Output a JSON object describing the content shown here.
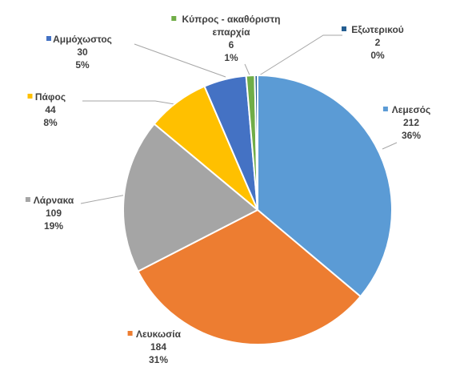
{
  "chart_data": {
    "type": "pie",
    "title": "",
    "start_angle_deg": 0,
    "direction": "clockwise",
    "slices": [
      {
        "name": "Λεμεσός",
        "label_lines": [
          "Λεμεσός"
        ],
        "value": 212,
        "value_text": "212",
        "percent_text": "36%",
        "color": "#5B9BD5"
      },
      {
        "name": "Λευκωσία",
        "label_lines": [
          "Λευκωσία"
        ],
        "value": 184,
        "value_text": "184",
        "percent_text": "31%",
        "color": "#ED7D31"
      },
      {
        "name": "Λάρνακα",
        "label_lines": [
          "Λάρνακα"
        ],
        "value": 109,
        "value_text": "109",
        "percent_text": "19%",
        "color": "#A5A5A5"
      },
      {
        "name": "Πάφος",
        "label_lines": [
          "Πάφος"
        ],
        "value": 44,
        "value_text": "44",
        "percent_text": "8%",
        "color": "#FFC000"
      },
      {
        "name": "Αμμόχωστος",
        "label_lines": [
          "Αμμόχωστος"
        ],
        "value": 30,
        "value_text": "30",
        "percent_text": "5%",
        "color": "#4472C4"
      },
      {
        "name": "Κύπρος - ακαθόριστη επαρχία",
        "label_lines": [
          "Κύπρος - ακαθόριστη",
          "επαρχία"
        ],
        "value": 6,
        "value_text": "6",
        "percent_text": "1%",
        "color": "#70AD47"
      },
      {
        "name": "Εξωτερικού",
        "label_lines": [
          "Εξωτερικού"
        ],
        "value": 2,
        "value_text": "2",
        "percent_text": "0%",
        "color": "#255E91"
      }
    ]
  }
}
